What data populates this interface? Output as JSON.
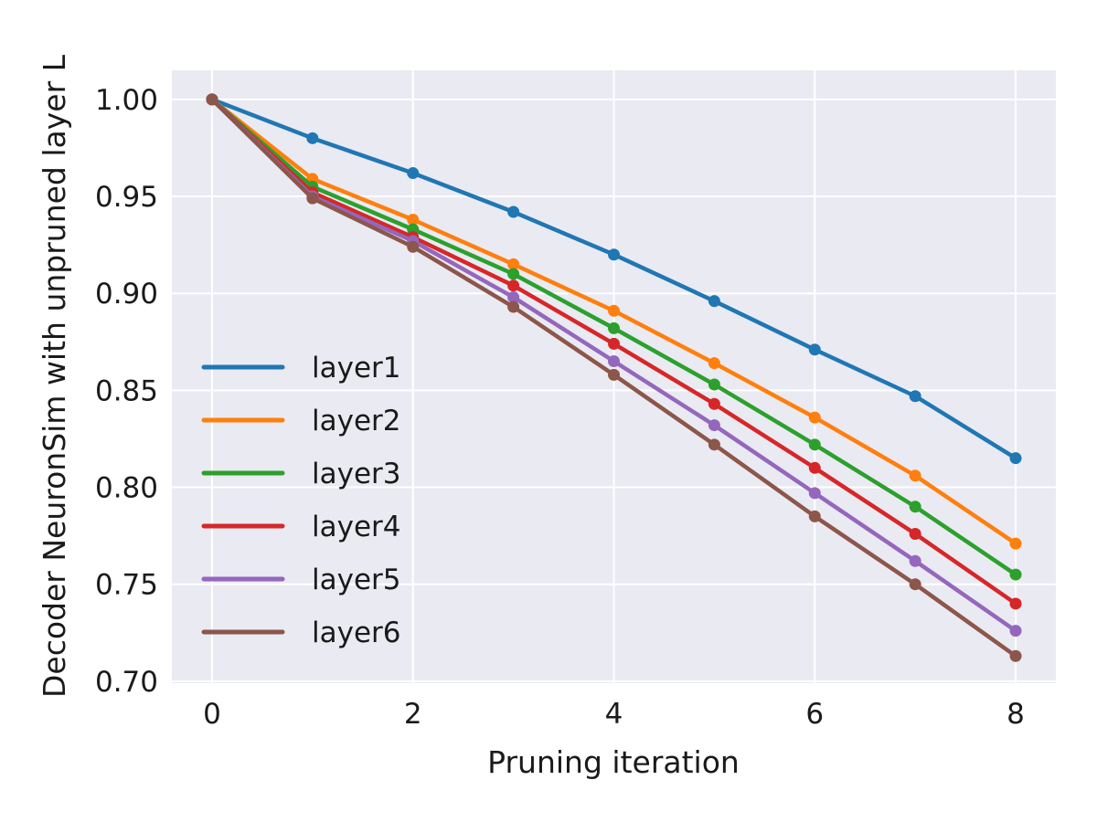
{
  "chart_data": {
    "type": "line",
    "title": "",
    "xlabel": "Pruning iteration",
    "ylabel": "Decoder NeuronSim with unpruned layer L",
    "x": [
      0,
      1,
      2,
      3,
      4,
      5,
      6,
      7,
      8
    ],
    "xlim": [
      -0.4,
      8.4
    ],
    "ylim": [
      0.699,
      1.015
    ],
    "xticks": [
      0,
      2,
      4,
      6,
      8
    ],
    "xtick_labels": [
      "0",
      "2",
      "4",
      "6",
      "8"
    ],
    "yticks": [
      0.7,
      0.75,
      0.8,
      0.85,
      0.9,
      0.95,
      1.0
    ],
    "ytick_labels": [
      "0.70",
      "0.75",
      "0.80",
      "0.85",
      "0.90",
      "0.95",
      "1.00"
    ],
    "grid": true,
    "legend_position": "center-left",
    "series": [
      {
        "name": "layer1",
        "color": "#1f77b4",
        "values": [
          1.0,
          0.98,
          0.962,
          0.942,
          0.92,
          0.896,
          0.871,
          0.847,
          0.815
        ]
      },
      {
        "name": "layer2",
        "color": "#ff7f0e",
        "values": [
          1.0,
          0.959,
          0.938,
          0.915,
          0.891,
          0.864,
          0.836,
          0.806,
          0.771
        ]
      },
      {
        "name": "layer3",
        "color": "#2ca02c",
        "values": [
          1.0,
          0.955,
          0.933,
          0.91,
          0.882,
          0.853,
          0.822,
          0.79,
          0.755
        ]
      },
      {
        "name": "layer4",
        "color": "#d62728",
        "values": [
          1.0,
          0.952,
          0.929,
          0.904,
          0.874,
          0.843,
          0.81,
          0.776,
          0.74
        ]
      },
      {
        "name": "layer5",
        "color": "#9467bd",
        "values": [
          1.0,
          0.95,
          0.927,
          0.898,
          0.865,
          0.832,
          0.797,
          0.762,
          0.726
        ]
      },
      {
        "name": "layer6",
        "color": "#8c564b",
        "values": [
          1.0,
          0.949,
          0.924,
          0.893,
          0.858,
          0.822,
          0.785,
          0.75,
          0.713
        ]
      }
    ]
  }
}
